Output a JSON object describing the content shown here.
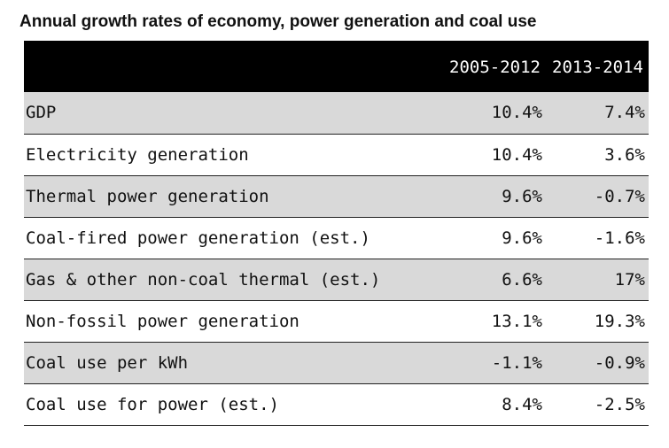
{
  "chart_data": {
    "type": "table",
    "title": "Annual growth rates of economy, power generation and coal use",
    "columns": [
      "",
      "2005-2012",
      "2013-2014"
    ],
    "rows": [
      {
        "label": "GDP",
        "values": [
          "10.4%",
          "7.4%"
        ]
      },
      {
        "label": "Electricity generation",
        "values": [
          "10.4%",
          "3.6%"
        ]
      },
      {
        "label": "Thermal power generation",
        "values": [
          "9.6%",
          "-0.7%"
        ]
      },
      {
        "label": "Coal-fired power generation (est.)",
        "values": [
          "9.6%",
          "-1.6%"
        ]
      },
      {
        "label": "Gas & other non-coal thermal (est.)",
        "values": [
          "6.6%",
          "17%"
        ]
      },
      {
        "label": "Non-fossil power generation",
        "values": [
          "13.1%",
          "19.3%"
        ]
      },
      {
        "label": "Coal use per kWh",
        "values": [
          "-1.1%",
          "-0.9%"
        ]
      },
      {
        "label": "Coal use for power (est.)",
        "values": [
          "8.4%",
          "-2.5%"
        ]
      }
    ],
    "header_color": "#000000",
    "shaded_row_color": "#d9d9d9"
  }
}
